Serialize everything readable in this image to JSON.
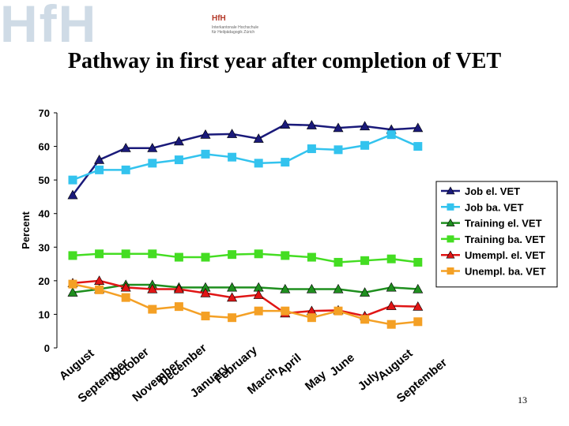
{
  "logo": {
    "background_text": "HfH",
    "mark": "HfH",
    "line1": "Interkantonale Hochschule",
    "line2": "für Heilpädagogik Zürich"
  },
  "slide": {
    "title": "Pathway in first year after completion of VET",
    "page_number": "13"
  },
  "colors": {
    "plot_bg": "#ffffff",
    "navy": "#1a1a7a",
    "cyan": "#33c3ee",
    "dark_green": "#1f8f1f",
    "light_green": "#44dd22",
    "red": "#e01515",
    "orange": "#f4a025"
  },
  "chart_data": {
    "type": "line",
    "title": "",
    "xlabel": "",
    "ylabel": "Percent",
    "ylim": [
      0,
      70
    ],
    "yticks": [
      0,
      10,
      20,
      30,
      40,
      50,
      60,
      70
    ],
    "grid": false,
    "legend_position": "right",
    "categories": [
      "August",
      "September",
      "October",
      "November",
      "December",
      "January",
      "February",
      "March",
      "April",
      "May",
      "June",
      "July",
      "August",
      "September"
    ],
    "series": [
      {
        "name": "Job el. VET",
        "marker": "triangle",
        "color": "#1a1a7a",
        "values": [
          45.5,
          56,
          59.5,
          59.5,
          61.5,
          63.5,
          63.7,
          62.3,
          66.5,
          66.3,
          65.5,
          66,
          65,
          65.5
        ]
      },
      {
        "name": "Job ba. VET",
        "marker": "square",
        "color": "#33c3ee",
        "values": [
          50,
          53,
          53,
          55,
          56,
          57.7,
          56.8,
          55,
          55.3,
          59.3,
          59,
          60.3,
          63.5,
          60
        ]
      },
      {
        "name": "Training el. VET",
        "marker": "triangle",
        "color": "#1f8f1f",
        "values": [
          16.5,
          17.5,
          18.8,
          18.8,
          18,
          18,
          18,
          18,
          17.5,
          17.5,
          17.5,
          16.5,
          18,
          17.5
        ]
      },
      {
        "name": "Training ba. VET",
        "marker": "square",
        "color": "#44dd22",
        "values": [
          27.5,
          28,
          28,
          28,
          27,
          27,
          27.8,
          28,
          27.5,
          27,
          25.5,
          26,
          26.5,
          25.5
        ]
      },
      {
        "name": "Umempl. el. VET",
        "marker": "triangle",
        "color": "#e01515",
        "values": [
          19.3,
          20,
          18,
          17.5,
          17.5,
          16.3,
          15,
          15.8,
          10.3,
          11,
          11.2,
          9.5,
          12.5,
          12.3
        ]
      },
      {
        "name": "Unempl. ba. VET",
        "marker": "square",
        "color": "#f4a025",
        "values": [
          19,
          17.3,
          15,
          11.5,
          12.3,
          9.5,
          9,
          11,
          11,
          9,
          11,
          8.5,
          7,
          7.8
        ]
      }
    ]
  }
}
